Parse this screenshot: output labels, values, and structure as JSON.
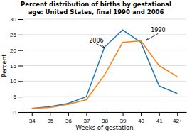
{
  "chart_data": {
    "type": "line",
    "title": "Percent distribution of births by gestational\nage: United States, final 1990 and 2006",
    "x_label": "Weeks of gestation",
    "y_label": "Percent",
    "x": [
      34,
      35,
      36,
      37,
      38,
      39,
      40,
      41,
      42
    ],
    "series": [
      {
        "values": [
          1.2,
          1.8,
          2.8,
          5.0,
          21.0,
          26.5,
          22.5,
          8.5,
          6.0
        ]
      },
      {
        "values": [
          1.2,
          1.5,
          2.5,
          4.0,
          12.0,
          22.5,
          23.0,
          15.0,
          11.5
        ]
      }
    ],
    "xlim": [
      33.5,
      42.5
    ],
    "xticks": [
      34,
      35,
      36,
      37,
      38,
      39,
      40,
      41,
      {
        "value": 42,
        "label": "42+"
      }
    ],
    "ylim": [
      0,
      30
    ],
    "yticks": [
      0,
      5,
      10,
      15,
      20,
      25,
      30
    ],
    "grid": true,
    "annotations": [
      {
        "text": "2006",
        "x": 38.0,
        "y": 20.8,
        "text_x": 37.15,
        "text_y": 22.5
      },
      {
        "text": "1990",
        "x": 40.3,
        "y": 23.2,
        "text_x": 40.55,
        "text_y": 25.8
      }
    ]
  }
}
